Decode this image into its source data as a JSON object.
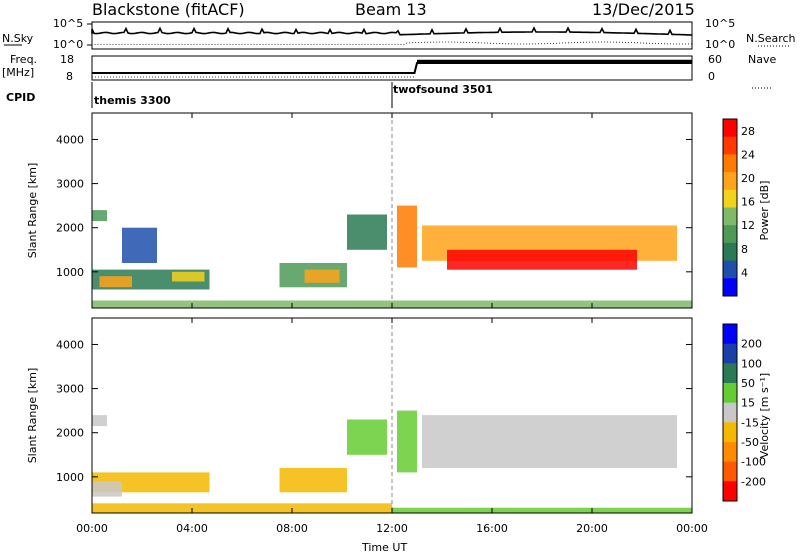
{
  "header": {
    "radar": "Blackstone (fitACF)",
    "beam": "Beam 13",
    "date": "13/Dec/2015"
  },
  "strips": {
    "nsky_label": "N.Sky",
    "nsearch_label": "N.Search",
    "log_ticks": [
      "10^5",
      "10^0"
    ],
    "freq_label": "Freq.",
    "freq_unit": "[MHz]",
    "freq_ticks": [
      "18",
      "8"
    ],
    "nave_label": "Nave",
    "nave_ticks": [
      "60",
      "0"
    ],
    "cpid_label": "CPID",
    "programs": [
      {
        "name": "themis 3300",
        "start_h": 0
      },
      {
        "name": "twofsound 3501",
        "start_h": 12
      }
    ]
  },
  "colors": {
    "power": [
      "#0000ff",
      "#1f4faa",
      "#2a7a55",
      "#4c9a58",
      "#7fba6a",
      "#f2d21a",
      "#ffa31a",
      "#ff7a00",
      "#ff3a00",
      "#ff0000"
    ],
    "velocity": [
      "#0000ff",
      "#1a3fa8",
      "#2a7a55",
      "#66cc33",
      "#c8c8c8",
      "#f5b800",
      "#ff8c00",
      "#ff5a00",
      "#ff0000"
    ]
  },
  "chart_data": [
    {
      "type": "heatmap",
      "title": "Power",
      "xlabel": "Time UT",
      "ylabel": "Slant Range [km]",
      "x_ticks": [
        "00:00",
        "04:00",
        "08:00",
        "12:00",
        "16:00",
        "20:00",
        "00:00"
      ],
      "y_ticks": [
        "1000",
        "2000",
        "3000",
        "4000"
      ],
      "xlim_hours": [
        0,
        24
      ],
      "ylim_km": [
        180,
        4600
      ],
      "colorbar": {
        "label": "Power [dB]",
        "ticks": [
          "4",
          "8",
          "12",
          "16",
          "20",
          "24",
          "28"
        ],
        "range": [
          0,
          30
        ]
      },
      "regions": [
        {
          "t0": 0.0,
          "t1": 4.7,
          "r0": 600,
          "r1": 1050,
          "value": 9
        },
        {
          "t0": 0.3,
          "t1": 1.6,
          "r0": 650,
          "r1": 900,
          "value": 20
        },
        {
          "t0": 3.2,
          "t1": 4.5,
          "r0": 780,
          "r1": 1000,
          "value": 18
        },
        {
          "t0": 0.0,
          "t1": 0.6,
          "r0": 2150,
          "r1": 2400,
          "value": 10
        },
        {
          "t0": 1.2,
          "t1": 2.6,
          "r0": 1200,
          "r1": 2000,
          "value": 6
        },
        {
          "t0": 7.5,
          "t1": 10.2,
          "r0": 650,
          "r1": 1200,
          "value": 12
        },
        {
          "t0": 8.5,
          "t1": 9.9,
          "r0": 750,
          "r1": 1050,
          "value": 20
        },
        {
          "t0": 10.2,
          "t1": 11.8,
          "r0": 1500,
          "r1": 2300,
          "value": 9
        },
        {
          "t0": 12.2,
          "t1": 13.0,
          "r0": 1100,
          "r1": 2500,
          "value": 22
        },
        {
          "t0": 13.2,
          "t1": 23.4,
          "r0": 1250,
          "r1": 2050,
          "value": 19
        },
        {
          "t0": 14.2,
          "t1": 21.8,
          "r0": 1050,
          "r1": 1500,
          "value": 28
        },
        {
          "t0": 0.0,
          "t1": 24.0,
          "r0": 180,
          "r1": 350,
          "value": 14
        }
      ]
    },
    {
      "type": "heatmap",
      "title": "Velocity",
      "xlabel": "Time UT",
      "ylabel": "Slant Range [km]",
      "x_ticks": [
        "00:00",
        "04:00",
        "08:00",
        "12:00",
        "16:00",
        "20:00",
        "00:00"
      ],
      "y_ticks": [
        "1000",
        "2000",
        "3000",
        "4000"
      ],
      "xlim_hours": [
        0,
        24
      ],
      "ylim_km": [
        180,
        4600
      ],
      "colorbar": {
        "label": "Velocity [m s⁻¹]",
        "ticks": [
          "200",
          "100",
          "50",
          "15",
          "-15",
          "-50",
          "-100",
          "-200"
        ],
        "range": [
          -250,
          250
        ]
      },
      "regions": [
        {
          "t0": 0.0,
          "t1": 4.7,
          "r0": 650,
          "r1": 1100,
          "value": -60
        },
        {
          "t0": 0.0,
          "t1": 1.2,
          "r0": 550,
          "r1": 900,
          "value": 0
        },
        {
          "t0": 0.0,
          "t1": 0.6,
          "r0": 2150,
          "r1": 2400,
          "value": 0
        },
        {
          "t0": 7.5,
          "t1": 10.2,
          "r0": 650,
          "r1": 1200,
          "value": -80
        },
        {
          "t0": 10.2,
          "t1": 11.8,
          "r0": 1500,
          "r1": 2300,
          "value": 40
        },
        {
          "t0": 12.2,
          "t1": 13.0,
          "r0": 1100,
          "r1": 2500,
          "value": 30
        },
        {
          "t0": 13.2,
          "t1": 23.4,
          "r0": 1200,
          "r1": 2400,
          "value": 0
        },
        {
          "t0": 0.0,
          "t1": 12.0,
          "r0": 180,
          "r1": 400,
          "value": -60
        },
        {
          "t0": 12.0,
          "t1": 24.0,
          "r0": 180,
          "r1": 300,
          "value": 30
        }
      ]
    }
  ]
}
